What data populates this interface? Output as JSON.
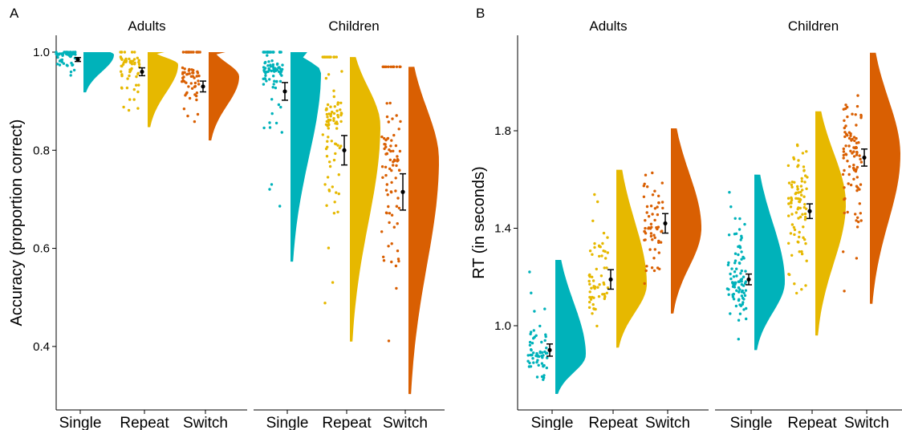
{
  "colors": {
    "Single": "#00B2BA",
    "Repeat": "#E6B800",
    "Switch": "#D95F02"
  },
  "chart_data": [
    {
      "panel": "A",
      "type": "raincloud",
      "ylabel": "Accuracy (proportion correct)",
      "xlabel": "",
      "yticks": [
        "0.4",
        "0.6",
        "0.8",
        "1.0"
      ],
      "ylim": [
        0.3,
        1.04
      ],
      "conditions": [
        "Single",
        "Repeat",
        "Switch"
      ],
      "facets": [
        {
          "name": "Adults",
          "groups": [
            {
              "condition": "Single",
              "mean": 0.985,
              "se": 0.004,
              "min": 0.918,
              "max": 1.0,
              "mode": 0.995
            },
            {
              "condition": "Repeat",
              "mean": 0.96,
              "se": 0.008,
              "min": 0.847,
              "max": 1.0,
              "mode": 0.975
            },
            {
              "condition": "Switch",
              "mean": 0.93,
              "se": 0.011,
              "min": 0.82,
              "max": 1.0,
              "mode": 0.95
            }
          ]
        },
        {
          "name": "Children",
          "groups": [
            {
              "condition": "Single",
              "mean": 0.92,
              "se": 0.018,
              "min": 0.573,
              "max": 1.0,
              "mode": 0.96
            },
            {
              "condition": "Repeat",
              "mean": 0.8,
              "se": 0.03,
              "min": 0.41,
              "max": 0.99,
              "mode": 0.85
            },
            {
              "condition": "Switch",
              "mean": 0.715,
              "se": 0.037,
              "min": 0.303,
              "max": 0.97,
              "mode": 0.78
            }
          ]
        }
      ]
    },
    {
      "panel": "B",
      "type": "raincloud",
      "ylabel": "RT (in seconds)",
      "xlabel": "",
      "yticks": [
        "1.0",
        "1.4",
        "1.8"
      ],
      "ylim": [
        0.7,
        1.94
      ],
      "conditions": [
        "Single",
        "Repeat",
        "Switch"
      ],
      "facets": [
        {
          "name": "Adults",
          "groups": [
            {
              "condition": "Single",
              "mean": 0.9,
              "se": 0.025,
              "min": 0.72,
              "max": 1.27,
              "mode": 0.88
            },
            {
              "condition": "Repeat",
              "mean": 1.19,
              "se": 0.04,
              "min": 0.91,
              "max": 1.64,
              "mode": 1.17
            },
            {
              "condition": "Switch",
              "mean": 1.42,
              "se": 0.04,
              "min": 1.05,
              "max": 1.81,
              "mode": 1.4
            }
          ]
        },
        {
          "name": "Children",
          "groups": [
            {
              "condition": "Single",
              "mean": 1.19,
              "se": 0.022,
              "min": 0.9,
              "max": 1.62,
              "mode": 1.18
            },
            {
              "condition": "Repeat",
              "mean": 1.47,
              "se": 0.03,
              "min": 0.96,
              "max": 1.88,
              "mode": 1.5
            },
            {
              "condition": "Switch",
              "mean": 1.69,
              "se": 0.035,
              "min": 1.09,
              "max": 2.12,
              "mode": 1.7
            }
          ]
        }
      ]
    }
  ]
}
